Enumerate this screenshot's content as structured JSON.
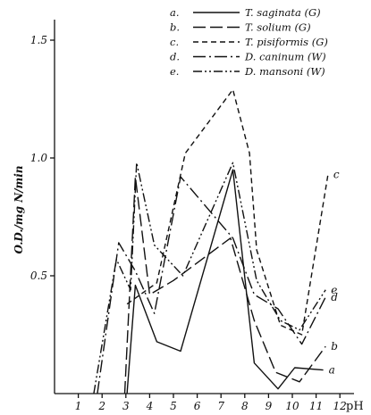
{
  "chart_data": {
    "type": "line",
    "xlabel": "pH",
    "ylabel": "O.D./mg N/min",
    "xlim": [
      0,
      12.3
    ],
    "ylim": [
      0,
      1.58
    ],
    "xticks": [
      1,
      2,
      3,
      4,
      5,
      6,
      7,
      8,
      9,
      10,
      11,
      12
    ],
    "yticks": [
      0.5,
      1.0,
      1.5
    ],
    "ytick_labels": [
      "0.5",
      "1.0",
      "1.5"
    ],
    "legend_position": "top-right",
    "series": [
      {
        "key": "a",
        "key_label": "a.",
        "name": "T. saginata (G)",
        "dash": "",
        "end_label": "a",
        "points": [
          [
            3.05,
            0.0
          ],
          [
            3.4,
            0.46
          ],
          [
            4.3,
            0.22
          ],
          [
            5.3,
            0.18
          ],
          [
            7.5,
            0.95
          ],
          [
            8.4,
            0.13
          ],
          [
            9.4,
            0.02
          ],
          [
            10.1,
            0.11
          ],
          [
            11.3,
            0.1
          ]
        ]
      },
      {
        "key": "b",
        "key_label": "b.",
        "name": "T. solium (G)",
        "dash": "14,5",
        "end_label": "b",
        "points": [
          [
            2.95,
            0.0
          ],
          [
            3.4,
            0.92
          ],
          [
            4.0,
            0.42
          ],
          [
            5.0,
            0.48
          ],
          [
            7.4,
            0.66
          ],
          [
            8.4,
            0.31
          ],
          [
            9.3,
            0.09
          ],
          [
            10.3,
            0.05
          ],
          [
            11.4,
            0.2
          ]
        ]
      },
      {
        "key": "c",
        "key_label": "c.",
        "name": "T. pisiformis (G)",
        "dash": "6,4",
        "end_label": "c",
        "points": [
          [
            3.05,
            0.38
          ],
          [
            4.3,
            0.47
          ],
          [
            5.5,
            1.02
          ],
          [
            7.5,
            1.29
          ],
          [
            8.2,
            1.02
          ],
          [
            8.5,
            0.61
          ],
          [
            9.5,
            0.29
          ],
          [
            10.4,
            0.25
          ],
          [
            11.5,
            0.93
          ]
        ]
      },
      {
        "key": "d",
        "key_label": "d.",
        "name": "D. caninum (W)",
        "dash": "14,4,2,4",
        "end_label": "d",
        "points": [
          [
            1.8,
            0.0
          ],
          [
            2.7,
            0.64
          ],
          [
            3.4,
            0.52
          ],
          [
            4.2,
            0.34
          ],
          [
            5.3,
            0.92
          ],
          [
            7.5,
            0.66
          ],
          [
            8.4,
            0.42
          ],
          [
            9.4,
            0.36
          ],
          [
            10.4,
            0.21
          ],
          [
            11.4,
            0.41
          ]
        ]
      },
      {
        "key": "e",
        "key_label": "e.",
        "name": "D. mansoni (W)",
        "dash": "10,3,2,3,2,3",
        "end_label": "e",
        "points": [
          [
            1.65,
            0.0
          ],
          [
            2.6,
            0.57
          ],
          [
            3.2,
            0.44
          ],
          [
            3.45,
            0.98
          ],
          [
            4.2,
            0.63
          ],
          [
            5.4,
            0.5
          ],
          [
            7.5,
            0.98
          ],
          [
            8.5,
            0.48
          ],
          [
            9.5,
            0.31
          ],
          [
            10.3,
            0.27
          ],
          [
            11.4,
            0.44
          ]
        ]
      }
    ]
  }
}
